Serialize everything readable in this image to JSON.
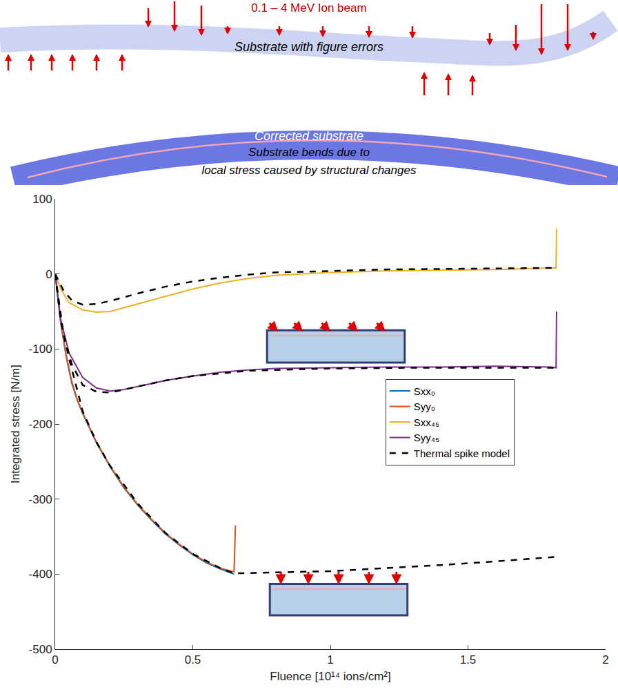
{
  "diagram": {
    "beam_label": "0.1 – 4 MeV Ion beam",
    "substrate_label": "Substrate with figure errors",
    "corrected_label": "Corrected substrate",
    "caption_lines": [
      "Substrate bends due to",
      "local stress caused by structural changes"
    ]
  },
  "chart_data": {
    "type": "line",
    "xlabel": "Fluence [10¹⁴ ions/cm²]",
    "ylabel": "Integrated stress [N/m]",
    "xlim": [
      0,
      2
    ],
    "ylim": [
      -500,
      100
    ],
    "xticks": [
      0,
      0.5,
      1,
      1.5,
      2
    ],
    "yticks": [
      -500,
      -400,
      -300,
      -200,
      -100,
      0,
      100
    ],
    "grid": false,
    "legend": "right",
    "series": [
      {
        "name": "Sxx₀",
        "color": "#0072bd",
        "line_style": "solid",
        "x": [
          0,
          0.01,
          0.02,
          0.04,
          0.06,
          0.08,
          0.1,
          0.15,
          0.2,
          0.25,
          0.3,
          0.35,
          0.4,
          0.45,
          0.5,
          0.55,
          0.6,
          0.65
        ],
        "values": [
          0,
          -35,
          -65,
          -110,
          -145,
          -168,
          -186,
          -225,
          -257,
          -285,
          -308,
          -328,
          -346,
          -361,
          -374,
          -385,
          -393,
          -400
        ]
      },
      {
        "name": "Syy₀",
        "color": "#d95319",
        "line_style": "solid",
        "x": [
          0,
          0.01,
          0.02,
          0.04,
          0.06,
          0.08,
          0.1,
          0.15,
          0.2,
          0.25,
          0.3,
          0.35,
          0.4,
          0.45,
          0.5,
          0.55,
          0.6,
          0.65,
          0.655
        ],
        "values": [
          0,
          -33,
          -63,
          -108,
          -143,
          -167,
          -185,
          -224,
          -256,
          -284,
          -307,
          -327,
          -345,
          -360,
          -373,
          -384,
          -392,
          -397,
          -335
        ]
      },
      {
        "name": "Sxx₄₅",
        "color": "#edb120",
        "line_style": "solid",
        "x": [
          0,
          0.02,
          0.05,
          0.1,
          0.15,
          0.2,
          0.25,
          0.3,
          0.4,
          0.5,
          0.6,
          0.7,
          0.8,
          1,
          1.2,
          1.4,
          1.6,
          1.8,
          1.82,
          1.822
        ],
        "values": [
          0,
          -20,
          -38,
          -48,
          -51,
          -50,
          -45,
          -40,
          -30,
          -20,
          -12,
          -6,
          -2,
          2,
          4,
          5,
          6,
          8,
          8,
          60
        ]
      },
      {
        "name": "Syy₄₅",
        "color": "#7e2f8e",
        "line_style": "solid",
        "x": [
          0,
          0.02,
          0.05,
          0.1,
          0.15,
          0.2,
          0.25,
          0.3,
          0.4,
          0.5,
          0.6,
          0.7,
          0.8,
          1,
          1.2,
          1.4,
          1.6,
          1.8,
          1.82,
          1.822
        ],
        "values": [
          0,
          -60,
          -105,
          -138,
          -152,
          -156,
          -154,
          -150,
          -142,
          -136,
          -131,
          -128,
          -126,
          -125,
          -124,
          -124,
          -123,
          -124,
          -125,
          -50
        ]
      },
      {
        "name": "Thermal spike model",
        "color": "#000000",
        "line_style": "dashed",
        "x": [
          0,
          0.02,
          0.05,
          0.1,
          0.15,
          0.2,
          0.3,
          0.4,
          0.5,
          0.6,
          0.65,
          0.8,
          1,
          1.2,
          1.4,
          1.6,
          1.82,
          null,
          0,
          0.03,
          0.06,
          0.1,
          0.15,
          0.2,
          0.3,
          0.4,
          0.5,
          0.6,
          0.7,
          0.8,
          1,
          1.2,
          1.5,
          1.82,
          null,
          0,
          0.03,
          0.06,
          0.1,
          0.15,
          0.2,
          0.3,
          0.4,
          0.5,
          0.7,
          1,
          1.3,
          1.6,
          1.82
        ],
        "values": [
          0,
          -62,
          -112,
          -183,
          -224,
          -256,
          -306,
          -345,
          -373,
          -392,
          -399,
          -398,
          -396,
          -392,
          -388,
          -383,
          -377,
          null,
          0,
          -22,
          -35,
          -41,
          -40,
          -36,
          -26,
          -17,
          -10,
          -5,
          -1,
          2,
          4,
          6,
          7,
          8,
          null,
          0,
          -80,
          -120,
          -148,
          -157,
          -158,
          -150,
          -142,
          -136,
          -129,
          -126,
          -125,
          -125,
          -125
        ]
      }
    ]
  }
}
